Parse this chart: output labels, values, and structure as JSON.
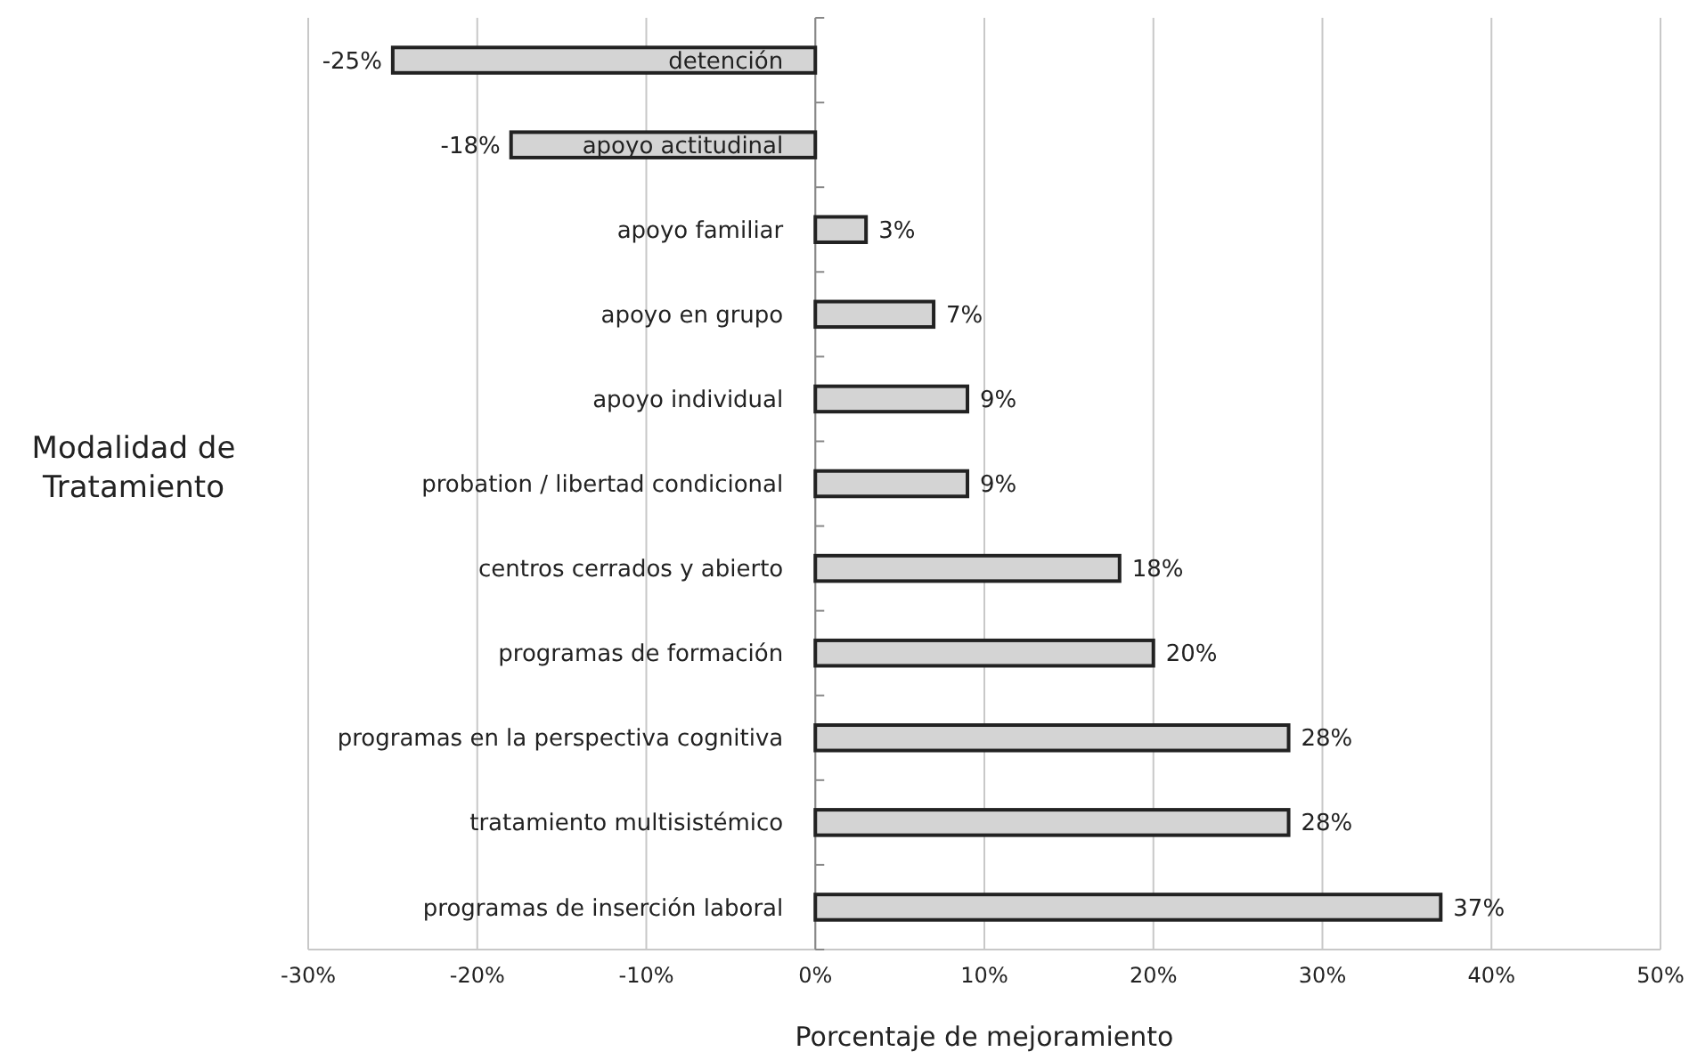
{
  "chart_data": {
    "type": "bar",
    "orientation": "horizontal",
    "xlabel": "Porcentaje de mejoramiento",
    "ylabel": "Modalidad de Tratamiento",
    "categories": [
      "detención",
      "apoyo actitudinal",
      "apoyo familiar",
      "apoyo en grupo",
      "apoyo individual",
      "probation / libertad condicional",
      "centros cerrados y abierto",
      "programas de formación",
      "programas en la perspectiva cognitiva",
      "tratamiento multisistémico",
      "programas de inserción laboral"
    ],
    "values": [
      -25,
      -18,
      3,
      7,
      9,
      9,
      18,
      20,
      28,
      28,
      37
    ],
    "value_labels": [
      "-25%",
      "-18%",
      "3%",
      "7%",
      "9%",
      "9%",
      "18%",
      "20%",
      "28%",
      "28%",
      "37%"
    ],
    "color": "#d4d4d4",
    "xlim": [
      -30,
      50
    ],
    "xticks": [
      {
        "value": -30,
        "label": "-30%"
      },
      {
        "value": -20,
        "label": "-20%"
      },
      {
        "value": -10,
        "label": "-10%"
      },
      {
        "value": 0,
        "label": "0%"
      },
      {
        "value": 10,
        "label": "10%"
      },
      {
        "value": 20,
        "label": "20%"
      },
      {
        "value": 30,
        "label": "30%"
      },
      {
        "value": 40,
        "label": "40%"
      },
      {
        "value": 50,
        "label": "50%"
      }
    ],
    "grid": "x"
  }
}
